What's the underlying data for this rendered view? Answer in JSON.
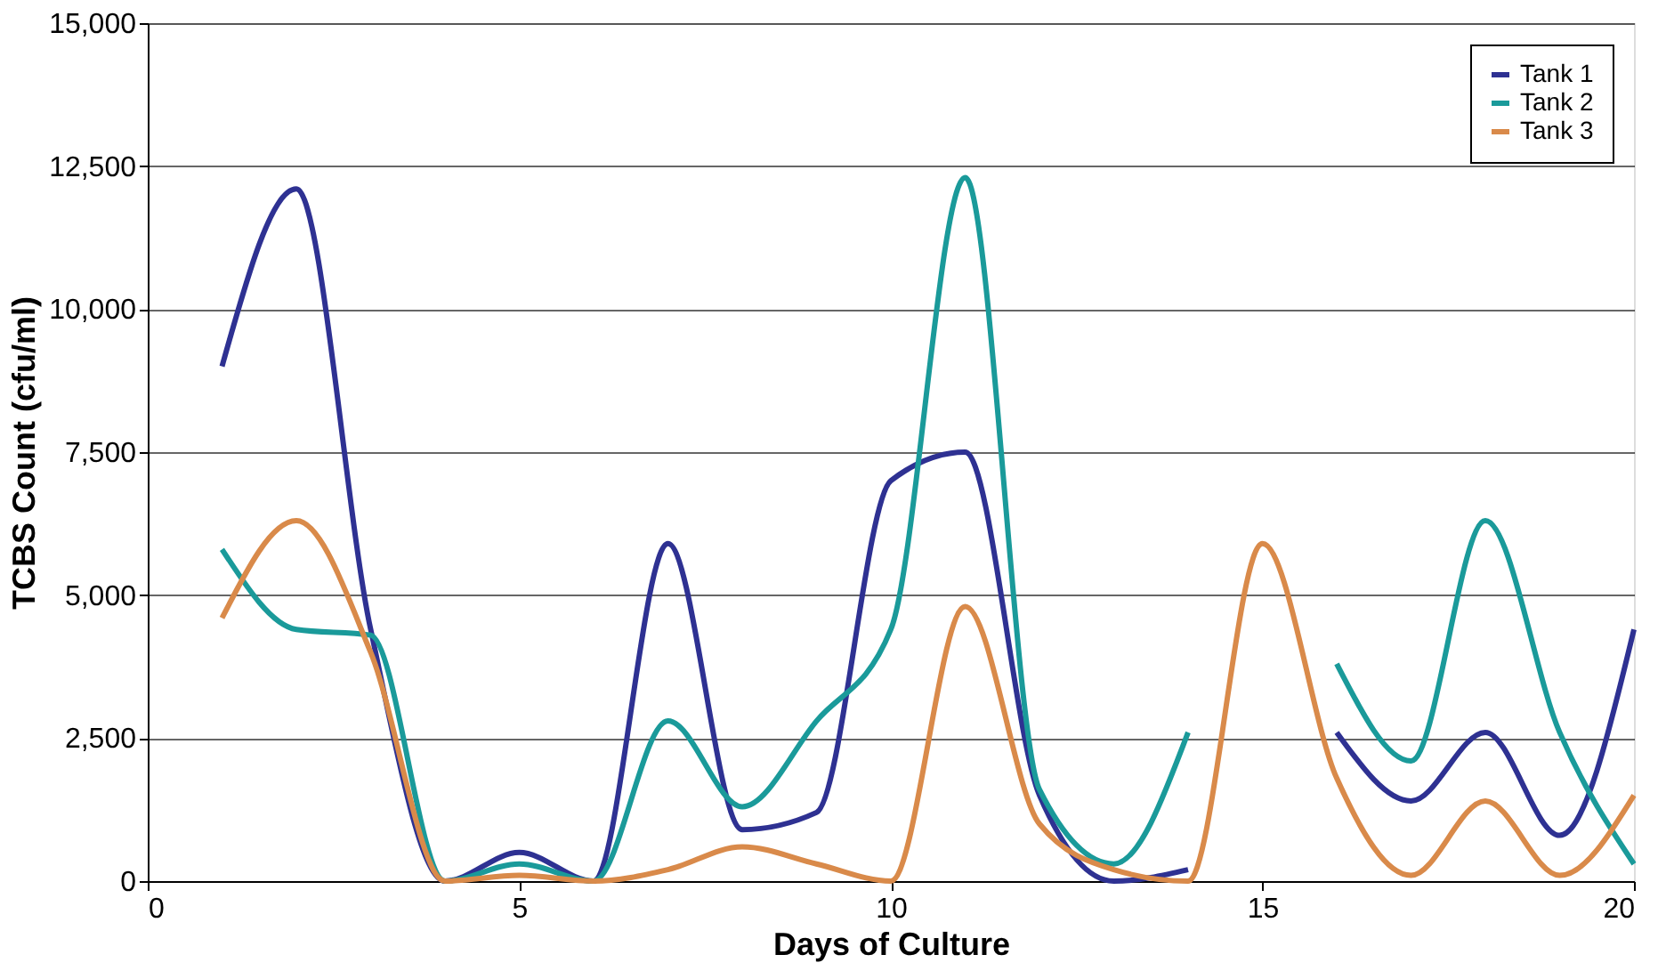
{
  "chart_data": {
    "type": "line",
    "xlabel": "Days of Culture",
    "ylabel": "TCBS Count (cfu/ml)",
    "x": [
      1,
      2,
      3,
      4,
      5,
      6,
      7,
      8,
      9,
      10,
      11,
      12,
      13,
      14,
      15,
      16,
      17,
      18,
      19,
      20
    ],
    "series": [
      {
        "name": "Tank 1",
        "color": "#2e3192",
        "values": [
          9000,
          12100,
          4400,
          0,
          500,
          0,
          5900,
          900,
          1200,
          7000,
          7500,
          1500,
          0,
          200,
          null,
          2600,
          1400,
          2600,
          800,
          4400
        ]
      },
      {
        "name": "Tank 2",
        "color": "#1a9a9a",
        "values": [
          5800,
          4400,
          4300,
          0,
          300,
          0,
          2800,
          1300,
          2800,
          4400,
          12300,
          1600,
          300,
          2600,
          null,
          3800,
          2100,
          6300,
          2600,
          300
        ]
      },
      {
        "name": "Tank 3",
        "color": "#d98a4a",
        "values": [
          4600,
          6300,
          4000,
          0,
          100,
          0,
          200,
          600,
          300,
          0,
          4800,
          1000,
          200,
          0,
          5900,
          1800,
          100,
          1400,
          100,
          1500
        ]
      }
    ],
    "xlim": [
      0,
      20
    ],
    "xticks": [
      0,
      5,
      10,
      15,
      20
    ],
    "ylim": [
      0,
      15000
    ],
    "yticks": [
      {
        "value": 0,
        "label": "0"
      },
      {
        "value": 2500,
        "label": "2,500"
      },
      {
        "value": 5000,
        "label": "5,000"
      },
      {
        "value": 7500,
        "label": "7,500"
      },
      {
        "value": 10000,
        "label": "10,000"
      },
      {
        "value": 12500,
        "label": "12,500"
      },
      {
        "value": 15000,
        "label": "15,000"
      }
    ],
    "grid": "y",
    "legend": "top right",
    "marker": "none",
    "line_style": "solid"
  }
}
